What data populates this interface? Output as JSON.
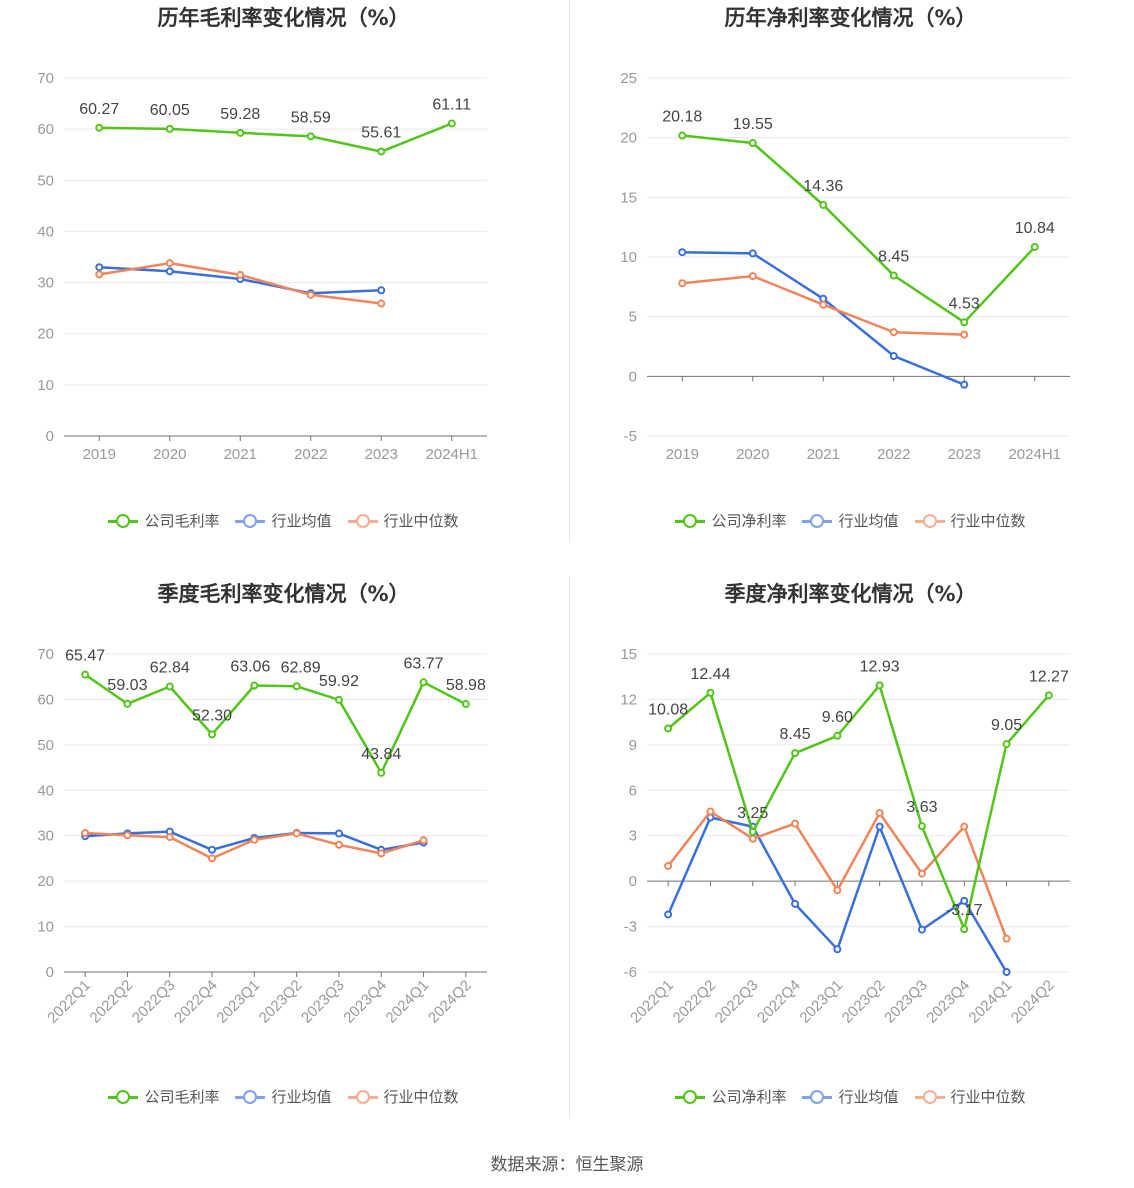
{
  "footer": {
    "source": "数据来源：恒生聚源"
  },
  "colors": {
    "company": "#52c41a",
    "avg": "#3a6fdb",
    "median": "#f0845a"
  },
  "chart_data": [
    {
      "type": "line",
      "title": "历年毛利率变化情况（%）",
      "categories": [
        "2019",
        "2020",
        "2021",
        "2022",
        "2023",
        "2024H1"
      ],
      "ylim": [
        0,
        70
      ],
      "yticks": [
        0,
        10,
        20,
        30,
        40,
        50,
        60,
        70
      ],
      "series": [
        {
          "name": "公司毛利率",
          "key": "company",
          "values": [
            60.27,
            60.05,
            59.28,
            58.59,
            55.61,
            61.11
          ],
          "labels": [
            "60.27",
            "60.05",
            "59.28",
            "58.59",
            "55.61",
            "61.11"
          ]
        },
        {
          "name": "行业均值",
          "key": "avg",
          "values": [
            33.0,
            32.2,
            30.7,
            27.9,
            28.5,
            null
          ]
        },
        {
          "name": "行业中位数",
          "key": "median",
          "values": [
            31.6,
            33.8,
            31.5,
            27.6,
            25.9,
            null
          ]
        }
      ]
    },
    {
      "type": "line",
      "title": "历年净利率变化情况（%）",
      "categories": [
        "2019",
        "2020",
        "2021",
        "2022",
        "2023",
        "2024H1"
      ],
      "ylim": [
        -5,
        25
      ],
      "yticks": [
        -5,
        0,
        5,
        10,
        15,
        20,
        25
      ],
      "series": [
        {
          "name": "公司净利率",
          "key": "company",
          "values": [
            20.18,
            19.55,
            14.36,
            8.45,
            4.53,
            10.84
          ],
          "labels": [
            "20.18",
            "19.55",
            "14.36",
            "8.45",
            "4.53",
            "10.84"
          ]
        },
        {
          "name": "行业均值",
          "key": "avg",
          "values": [
            10.4,
            10.3,
            6.5,
            1.7,
            -0.7,
            null
          ]
        },
        {
          "name": "行业中位数",
          "key": "median",
          "values": [
            7.8,
            8.4,
            6.0,
            3.7,
            3.5,
            null
          ]
        }
      ]
    },
    {
      "type": "line",
      "title": "季度毛利率变化情况（%）",
      "categories": [
        "2022Q1",
        "2022Q2",
        "2022Q3",
        "2022Q4",
        "2023Q1",
        "2023Q2",
        "2023Q3",
        "2023Q4",
        "2024Q1",
        "2024Q2"
      ],
      "ylim": [
        0,
        70
      ],
      "yticks": [
        0,
        10,
        20,
        30,
        40,
        50,
        60,
        70
      ],
      "series": [
        {
          "name": "公司毛利率",
          "key": "company",
          "values": [
            65.47,
            59.03,
            62.84,
            52.3,
            63.06,
            62.89,
            59.92,
            43.84,
            63.77,
            58.98
          ],
          "labels": [
            "65.47",
            "59.03",
            "62.84",
            "52.30",
            "63.06",
            "62.89",
            "59.92",
            "43.84",
            "63.77",
            "58.98"
          ]
        },
        {
          "name": "行业均值",
          "key": "avg",
          "values": [
            29.9,
            30.5,
            30.9,
            26.9,
            29.5,
            30.6,
            30.5,
            26.9,
            28.5,
            null
          ]
        },
        {
          "name": "行业中位数",
          "key": "median",
          "values": [
            30.6,
            30.1,
            29.7,
            25.0,
            29.1,
            30.5,
            28.0,
            26.1,
            29.0,
            null
          ]
        }
      ]
    },
    {
      "type": "line",
      "title": "季度净利率变化情况（%）",
      "categories": [
        "2022Q1",
        "2022Q2",
        "2022Q3",
        "2022Q4",
        "2023Q1",
        "2023Q2",
        "2023Q3",
        "2023Q4",
        "2024Q1",
        "2024Q2"
      ],
      "ylim": [
        -6,
        15
      ],
      "yticks": [
        -6,
        -3,
        0,
        3,
        6,
        9,
        12,
        15
      ],
      "series": [
        {
          "name": "公司净利率",
          "key": "company",
          "values": [
            10.08,
            12.44,
            3.25,
            8.45,
            9.6,
            12.93,
            3.63,
            -3.17,
            9.05,
            12.27
          ],
          "labels": [
            "10.08",
            "12.44",
            "3.25",
            "8.45",
            "9.60",
            "12.93",
            "3.63",
            "-3.17",
            "9.05",
            "12.27"
          ]
        },
        {
          "name": "行业均值",
          "key": "avg",
          "values": [
            -2.2,
            4.2,
            3.6,
            -1.5,
            -4.5,
            3.6,
            -3.2,
            -1.3,
            -6.0,
            null
          ]
        },
        {
          "name": "行业中位数",
          "key": "median",
          "values": [
            1.0,
            4.6,
            2.8,
            3.8,
            -0.6,
            4.5,
            0.5,
            3.6,
            -3.8,
            null
          ]
        }
      ]
    }
  ]
}
